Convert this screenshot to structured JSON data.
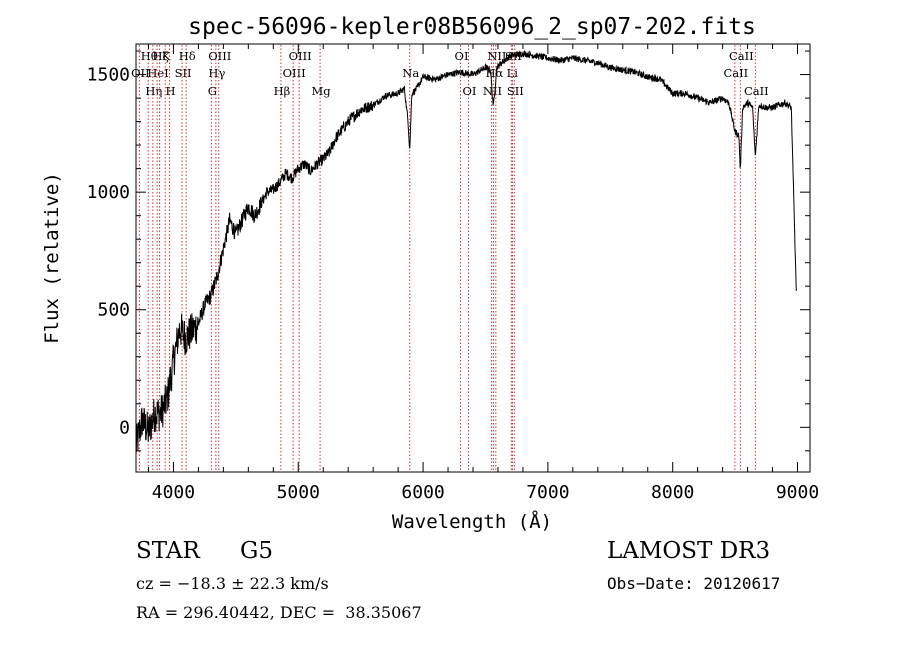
{
  "chart_data": {
    "type": "line",
    "title": "spec-56096-kepler08B56096_2_sp07-202.fits",
    "xlabel": "Wavelength (Å)",
    "ylabel": "Flux (relative)",
    "xlim": [
      3700,
      9100
    ],
    "ylim": [
      -190,
      1630
    ],
    "xticks": [
      4000,
      5000,
      6000,
      7000,
      8000,
      9000
    ],
    "yticks": [
      0,
      500,
      1000,
      1500
    ],
    "series": [
      {
        "name": "spectrum",
        "x": [
          3700,
          3750,
          3800,
          3850,
          3900,
          3950,
          4000,
          4050,
          4100,
          4150,
          4200,
          4250,
          4300,
          4350,
          4400,
          4450,
          4500,
          4550,
          4600,
          4650,
          4700,
          4750,
          4800,
          4850,
          4900,
          4950,
          5000,
          5050,
          5100,
          5150,
          5200,
          5250,
          5300,
          5400,
          5500,
          5600,
          5700,
          5800,
          5850,
          5880,
          5893,
          5910,
          5950,
          6000,
          6100,
          6200,
          6300,
          6400,
          6500,
          6540,
          6563,
          6590,
          6650,
          6700,
          6800,
          6900,
          7000,
          7100,
          7200,
          7300,
          7400,
          7500,
          7600,
          7700,
          7800,
          7900,
          8000,
          8100,
          8200,
          8300,
          8400,
          8450,
          8498,
          8530,
          8542,
          8560,
          8600,
          8640,
          8662,
          8690,
          8750,
          8800,
          8850,
          8900,
          8950,
          8990
        ],
        "y": [
          -80,
          30,
          -20,
          60,
          60,
          120,
          280,
          420,
          380,
          410,
          440,
          520,
          560,
          640,
          760,
          880,
          820,
          880,
          940,
          900,
          950,
          1000,
          1010,
          1040,
          1080,
          1060,
          1100,
          1120,
          1090,
          1120,
          1140,
          1170,
          1230,
          1300,
          1350,
          1370,
          1410,
          1420,
          1440,
          1300,
          1180,
          1420,
          1440,
          1490,
          1480,
          1500,
          1510,
          1500,
          1530,
          1520,
          1360,
          1530,
          1560,
          1580,
          1590,
          1580,
          1570,
          1560,
          1570,
          1560,
          1550,
          1530,
          1520,
          1510,
          1490,
          1480,
          1420,
          1420,
          1400,
          1380,
          1400,
          1380,
          1260,
          1240,
          1090,
          1360,
          1380,
          1360,
          1150,
          1370,
          1360,
          1360,
          1370,
          1380,
          1360,
          580
        ]
      }
    ],
    "lines": [
      {
        "wave": 3798,
        "label": "Hθ",
        "row": 0
      },
      {
        "wave": 3835,
        "label": "Hη",
        "row": 2
      },
      {
        "wave": 3727,
        "label": "OII",
        "row": 1
      },
      {
        "wave": 3869,
        "label": "HeI",
        "row": 1
      },
      {
        "wave": 3889,
        "label": "Hζ",
        "row": 0
      },
      {
        "wave": 3934,
        "label": "K",
        "row": 0
      },
      {
        "wave": 3969,
        "label": "H",
        "row": 2
      },
      {
        "wave": 4069,
        "label": "SII",
        "row": 1
      },
      {
        "wave": 4102,
        "label": "Hδ",
        "row": 0
      },
      {
        "wave": 4340,
        "label": "Hγ",
        "row": 1
      },
      {
        "wave": 4304,
        "label": "G",
        "row": 2
      },
      {
        "wave": 4363,
        "label": "OIII",
        "row": 0
      },
      {
        "wave": 4861,
        "label": "Hβ",
        "row": 2
      },
      {
        "wave": 4959,
        "label": "OIII",
        "row": 1
      },
      {
        "wave": 5007,
        "label": "OIII",
        "row": 0
      },
      {
        "wave": 5175,
        "label": "Mg",
        "row": 2
      },
      {
        "wave": 5893,
        "label": "Na",
        "row": 1
      },
      {
        "wave": 6300,
        "label": "OI",
        "row": 0
      },
      {
        "wave": 6364,
        "label": "OI",
        "row": 2
      },
      {
        "wave": 6548,
        "label": "NII",
        "row": 2
      },
      {
        "wave": 6563,
        "label": "Hα",
        "row": 1
      },
      {
        "wave": 6583,
        "label": "NII",
        "row": 0
      },
      {
        "wave": 6707,
        "label": "Li",
        "row": 1
      },
      {
        "wave": 6716,
        "label": "SII",
        "row": 0
      },
      {
        "wave": 6731,
        "label": "SII",
        "row": 2
      },
      {
        "wave": 8498,
        "label": "CaII",
        "row": 1
      },
      {
        "wave": 8542,
        "label": "CaII",
        "row": 0
      },
      {
        "wave": 8662,
        "label": "CaII",
        "row": 2
      }
    ]
  },
  "info": {
    "class": "STAR",
    "subclass": "G5",
    "survey": "LAMOST DR3",
    "cz": "cz = −18.3 ± 22.3 km/s",
    "obsdate": "Obs−Date: 20120617",
    "coords": "RA = 296.40442, DEC =  38.35067"
  },
  "colors": {
    "axis": "#000000",
    "spectrum": "#000000",
    "lines": "#cc3333"
  }
}
